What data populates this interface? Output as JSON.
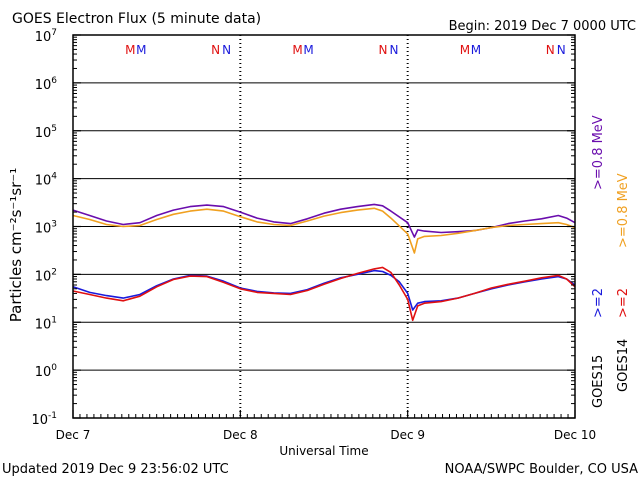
{
  "header": {
    "title": "GOES Electron Flux (5 minute data)",
    "begin": "Begin: 2019 Dec 7 0000 UTC"
  },
  "footer": {
    "updated": "Updated 2019 Dec  9 23:56:02 UTC",
    "source": "NOAA/SWPC Boulder, CO USA"
  },
  "colors": {
    "goes15_08": "#6a0dad",
    "goes14_08": "#f0a020",
    "goes15_2": "#1a1adc",
    "goes14_2": "#e01010",
    "axis": "#000000"
  },
  "marker_rows": [
    {
      "letters": [
        "M",
        "M"
      ],
      "colors": [
        "#e01010",
        "#1a1adc"
      ],
      "day": 0,
      "time": 0.39
    },
    {
      "letters": [
        "N",
        "N"
      ],
      "colors": [
        "#e01010",
        "#1a1adc"
      ],
      "day": 0,
      "time": 0.9
    },
    {
      "letters": [
        "M",
        "M"
      ],
      "colors": [
        "#e01010",
        "#1a1adc"
      ],
      "day": 1,
      "time": 0.39
    },
    {
      "letters": [
        "N",
        "N"
      ],
      "colors": [
        "#e01010",
        "#1a1adc"
      ],
      "day": 1,
      "time": 0.9
    },
    {
      "letters": [
        "M",
        "M"
      ],
      "colors": [
        "#e01010",
        "#1a1adc"
      ],
      "day": 2,
      "time": 0.39
    },
    {
      "letters": [
        "N",
        "N"
      ],
      "colors": [
        "#e01010",
        "#1a1adc"
      ],
      "day": 2,
      "time": 0.9
    }
  ],
  "right_legend": {
    "g15_08": ">=0.8  MeV",
    "g14_08": ">=0.8  MeV",
    "g15_2": ">=2",
    "g14_2": ">=2",
    "g15_name": "GOES15",
    "g14_name": "GOES14"
  },
  "chart_data": {
    "type": "line",
    "xlabel": "Universal Time",
    "ylabel": "Particles cm⁻²s⁻¹sr⁻¹",
    "x_ticks": [
      "Dec 7",
      "Dec 8",
      "Dec 9",
      "Dec 10"
    ],
    "x_range_days": [
      0,
      3
    ],
    "y_scale": "log",
    "ylim": [
      0.1,
      10000000
    ],
    "y_ticks": [
      {
        "base": "10",
        "exp": "7"
      },
      {
        "base": "10",
        "exp": "6"
      },
      {
        "base": "10",
        "exp": "5"
      },
      {
        "base": "10",
        "exp": "4"
      },
      {
        "base": "10",
        "exp": "3"
      },
      {
        "base": "10",
        "exp": "2"
      },
      {
        "base": "10",
        "exp": "1"
      },
      {
        "base": "10",
        "exp": "0"
      },
      {
        "base": "10",
        "exp": "-1"
      }
    ],
    "threshold": 1000,
    "gridlines_at": [
      1000000,
      100000,
      10000,
      1000,
      100,
      10,
      1
    ],
    "series": [
      {
        "name": "GOES15 >=0.8 MeV",
        "color": "#6a0dad",
        "x": [
          0,
          0.1,
          0.2,
          0.3,
          0.4,
          0.5,
          0.6,
          0.7,
          0.8,
          0.9,
          1.0,
          1.1,
          1.2,
          1.3,
          1.4,
          1.5,
          1.6,
          1.7,
          1.8,
          1.85,
          1.9,
          2.0,
          2.04,
          2.06,
          2.1,
          2.2,
          2.3,
          2.4,
          2.5,
          2.6,
          2.7,
          2.8,
          2.9,
          2.95,
          3.0
        ],
        "y": [
          2200,
          1700,
          1300,
          1100,
          1200,
          1700,
          2200,
          2600,
          2800,
          2600,
          2000,
          1500,
          1250,
          1150,
          1450,
          1900,
          2300,
          2600,
          2900,
          2700,
          2100,
          1200,
          600,
          850,
          800,
          750,
          780,
          820,
          950,
          1150,
          1300,
          1450,
          1700,
          1500,
          1200
        ]
      },
      {
        "name": "GOES14 >=0.8 MeV",
        "color": "#f0a020",
        "x": [
          0,
          0.1,
          0.2,
          0.3,
          0.4,
          0.5,
          0.6,
          0.7,
          0.8,
          0.9,
          1.0,
          1.1,
          1.2,
          1.3,
          1.4,
          1.5,
          1.6,
          1.7,
          1.8,
          1.85,
          1.9,
          2.0,
          2.04,
          2.06,
          2.1,
          2.2,
          2.3,
          2.4,
          2.5,
          2.6,
          2.7,
          2.8,
          2.9,
          2.95,
          3.0
        ],
        "y": [
          1700,
          1400,
          1100,
          1000,
          1050,
          1400,
          1800,
          2100,
          2300,
          2100,
          1600,
          1250,
          1100,
          1050,
          1300,
          1650,
          1950,
          2200,
          2400,
          2100,
          1500,
          700,
          280,
          550,
          620,
          650,
          720,
          820,
          950,
          1050,
          1100,
          1150,
          1200,
          1100,
          950
        ]
      },
      {
        "name": "GOES15 >=2 MeV",
        "color": "#1a1adc",
        "x": [
          0,
          0.1,
          0.2,
          0.3,
          0.4,
          0.5,
          0.6,
          0.7,
          0.8,
          0.9,
          1.0,
          1.1,
          1.2,
          1.3,
          1.4,
          1.5,
          1.6,
          1.7,
          1.8,
          1.85,
          1.9,
          1.95,
          2.0,
          2.03,
          2.06,
          2.1,
          2.2,
          2.3,
          2.4,
          2.5,
          2.6,
          2.7,
          2.8,
          2.9,
          2.95,
          3.0
        ],
        "y": [
          55,
          42,
          36,
          32,
          38,
          58,
          80,
          95,
          92,
          72,
          52,
          44,
          41,
          40,
          48,
          65,
          85,
          100,
          120,
          115,
          95,
          70,
          40,
          18,
          25,
          27,
          28,
          32,
          40,
          50,
          60,
          70,
          80,
          90,
          80,
          60
        ]
      },
      {
        "name": "GOES14 >=2 MeV",
        "color": "#e01010",
        "x": [
          0,
          0.1,
          0.2,
          0.3,
          0.4,
          0.5,
          0.6,
          0.7,
          0.8,
          0.9,
          1.0,
          1.1,
          1.2,
          1.3,
          1.4,
          1.5,
          1.6,
          1.7,
          1.8,
          1.85,
          1.9,
          1.95,
          2.0,
          2.03,
          2.06,
          2.1,
          2.2,
          2.3,
          2.4,
          2.5,
          2.6,
          2.7,
          2.8,
          2.9,
          2.95,
          3.0
        ],
        "y": [
          45,
          38,
          32,
          28,
          35,
          55,
          78,
          92,
          90,
          68,
          50,
          42,
          40,
          38,
          46,
          62,
          82,
          105,
          130,
          140,
          110,
          60,
          30,
          11,
          22,
          25,
          27,
          32,
          40,
          52,
          62,
          72,
          85,
          95,
          80,
          55
        ]
      }
    ]
  }
}
